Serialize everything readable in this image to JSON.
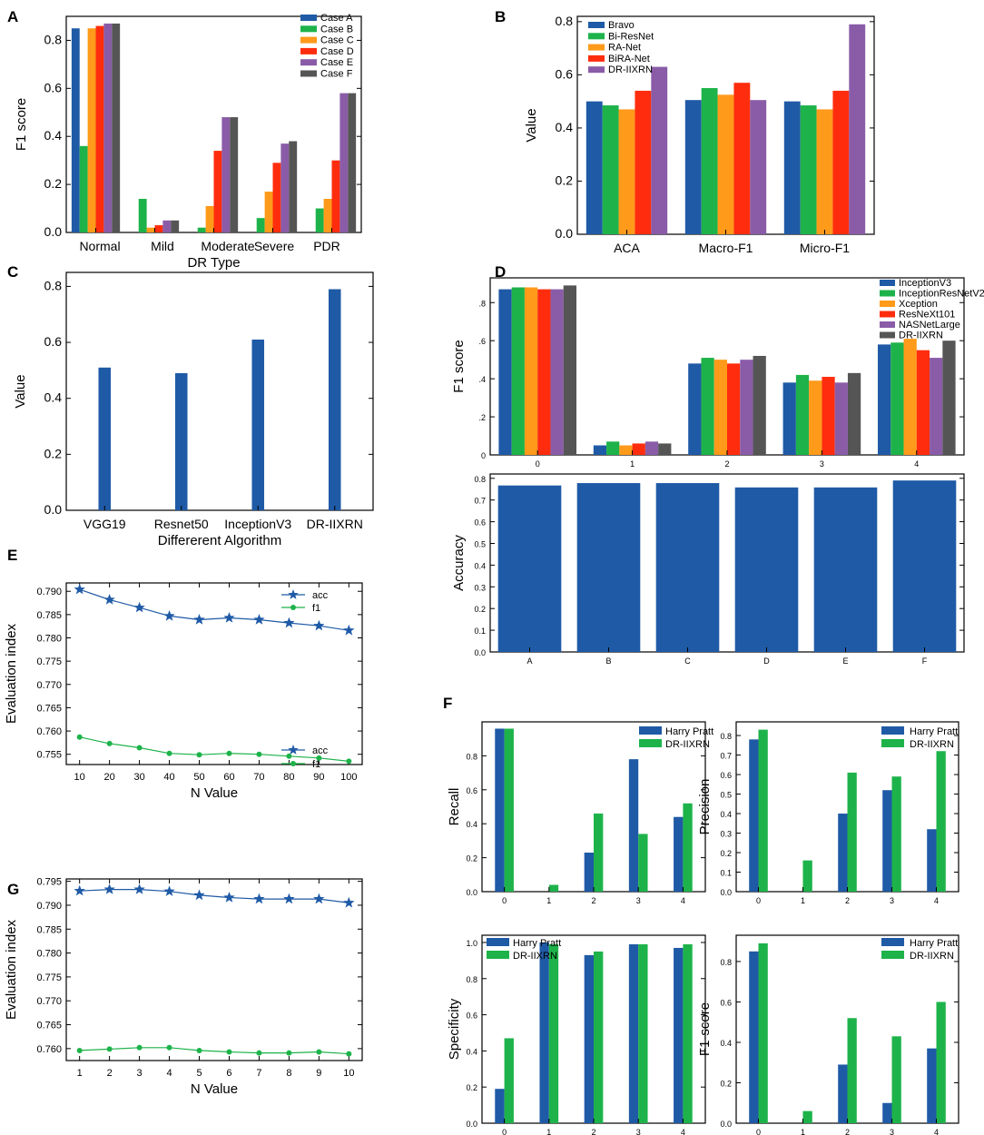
{
  "colors": {
    "blue": "#1f5aa6",
    "green": "#1db34a",
    "orange": "#ff9a1a",
    "red": "#ff2d0d",
    "purple": "#8a5ca8",
    "gray": "#555555",
    "line_blue": "#1f5aa6",
    "line_green": "#1db34a"
  },
  "chart_data": [
    {
      "id": "A",
      "letter": "A",
      "type": "bar",
      "categories": [
        "Normal",
        "Mild",
        "Moderate",
        "Severe",
        "PDR"
      ],
      "series": [
        {
          "name": "Case A",
          "color": "blue",
          "values": [
            0.85,
            0.0,
            0.0,
            0.0,
            0.0
          ]
        },
        {
          "name": "Case B",
          "color": "green",
          "values": [
            0.36,
            0.14,
            0.02,
            0.06,
            0.1
          ]
        },
        {
          "name": "Case C",
          "color": "orange",
          "values": [
            0.85,
            0.02,
            0.11,
            0.17,
            0.14
          ]
        },
        {
          "name": "Case D",
          "color": "red",
          "values": [
            0.86,
            0.03,
            0.34,
            0.29,
            0.3
          ]
        },
        {
          "name": "Case E",
          "color": "purple",
          "values": [
            0.87,
            0.05,
            0.48,
            0.37,
            0.58
          ]
        },
        {
          "name": "Case F",
          "color": "gray",
          "values": [
            0.87,
            0.05,
            0.48,
            0.38,
            0.58
          ]
        }
      ],
      "xlabel": "DR Type",
      "ylabel": "F1 score",
      "ylim": [
        0,
        0.9
      ],
      "yticks": [
        "0.0",
        "0.2",
        "0.4",
        "0.6",
        "0.8"
      ],
      "legend": "top-right"
    },
    {
      "id": "B",
      "letter": "B",
      "type": "bar",
      "categories": [
        "ACA",
        "Macro-F1",
        "Micro-F1"
      ],
      "series": [
        {
          "name": "Bravo",
          "color": "blue",
          "values": [
            0.5,
            0.505,
            0.5
          ]
        },
        {
          "name": "Bi-ResNet",
          "color": "green",
          "values": [
            0.485,
            0.55,
            0.485
          ]
        },
        {
          "name": "RA-Net",
          "color": "orange",
          "values": [
            0.47,
            0.525,
            0.47
          ]
        },
        {
          "name": "BiRA-Net",
          "color": "red",
          "values": [
            0.54,
            0.57,
            0.54
          ]
        },
        {
          "name": "DR-IIXRN",
          "color": "purple",
          "values": [
            0.63,
            0.505,
            0.79
          ]
        }
      ],
      "xlabel": "",
      "ylabel": "Value",
      "ylim": [
        0,
        0.82
      ],
      "yticks": [
        "0.0",
        "0.2",
        "0.4",
        "0.6",
        "0.8"
      ],
      "legend": "top-left"
    },
    {
      "id": "C",
      "letter": "C",
      "type": "bar",
      "categories": [
        "VGG19",
        "Resnet50",
        "InceptionV3",
        "DR-IIXRN"
      ],
      "series": [
        {
          "name": "Value",
          "color": "blue",
          "values": [
            0.51,
            0.49,
            0.61,
            0.79
          ]
        }
      ],
      "xlabel": "Differerent Algorithm",
      "ylabel": "Value",
      "ylim": [
        0,
        0.85
      ],
      "yticks": [
        "0.0",
        "0.2",
        "0.4",
        "0.6",
        "0.8"
      ]
    },
    {
      "id": "D1",
      "letter": "D",
      "type": "bar",
      "categories": [
        "0",
        "1",
        "2",
        "3",
        "4"
      ],
      "series": [
        {
          "name": "InceptionV3",
          "color": "blue",
          "values": [
            0.87,
            0.05,
            0.48,
            0.38,
            0.58
          ]
        },
        {
          "name": "InceptionResNetV2",
          "color": "green",
          "values": [
            0.88,
            0.07,
            0.51,
            0.42,
            0.59
          ]
        },
        {
          "name": "Xception",
          "color": "orange",
          "values": [
            0.88,
            0.05,
            0.5,
            0.39,
            0.61
          ]
        },
        {
          "name": "ResNeXt101",
          "color": "red",
          "values": [
            0.87,
            0.06,
            0.48,
            0.41,
            0.55
          ]
        },
        {
          "name": "NASNetLarge",
          "color": "purple",
          "values": [
            0.87,
            0.07,
            0.5,
            0.38,
            0.51
          ]
        },
        {
          "name": "DR-IIXRN",
          "color": "gray",
          "values": [
            0.89,
            0.06,
            0.52,
            0.43,
            0.6
          ]
        }
      ],
      "xlabel": "",
      "ylabel": "F1 score",
      "ylim": [
        0,
        0.93
      ],
      "yticks": [
        "0",
        ".2",
        ".4",
        ".6",
        ".8"
      ],
      "legend": "top-right"
    },
    {
      "id": "D2",
      "letter": "",
      "type": "bar",
      "categories": [
        "A",
        "B",
        "C",
        "D",
        "E",
        "F"
      ],
      "series": [
        {
          "name": "Accuracy",
          "color": "blue",
          "values": [
            0.767,
            0.778,
            0.778,
            0.758,
            0.758,
            0.79
          ]
        }
      ],
      "xlabel": "",
      "ylabel": "Accuracy",
      "ylim": [
        0,
        0.82
      ],
      "yticks": [
        "0.0",
        "0.1",
        "0.2",
        "0.3",
        "0.4",
        "0.5",
        "0.6",
        "0.7",
        "0.8"
      ]
    },
    {
      "id": "E",
      "letter": "E",
      "type": "line",
      "x": [
        10,
        20,
        30,
        40,
        50,
        60,
        70,
        80,
        90,
        100
      ],
      "series": [
        {
          "name": "acc",
          "color": "line_blue",
          "marker": "star",
          "values": [
            0.7904,
            0.7882,
            0.7865,
            0.7847,
            0.7839,
            0.7843,
            0.7839,
            0.7832,
            0.7826,
            0.7816
          ]
        },
        {
          "name": "f1",
          "color": "line_green",
          "marker": "circle",
          "values": [
            0.7587,
            0.7573,
            0.7564,
            0.7552,
            0.7549,
            0.7552,
            0.755,
            0.7546,
            0.7542,
            0.7535
          ]
        }
      ],
      "xlabel": "N Value",
      "ylabel": "Evaluation index",
      "ylim": [
        0.7528,
        0.7918
      ],
      "yticks": [
        "0.755",
        "0.760",
        "0.765",
        "0.770",
        "0.775",
        "0.780",
        "0.785",
        "0.790"
      ],
      "xticks": [
        "10",
        "20",
        "30",
        "40",
        "50",
        "60",
        "70",
        "80",
        "90",
        "100"
      ],
      "legend": "top-right"
    },
    {
      "id": "G",
      "letter": "G",
      "type": "line",
      "x": [
        1,
        2,
        3,
        4,
        5,
        6,
        7,
        8,
        9,
        10
      ],
      "series": [
        {
          "name": "acc",
          "color": "line_blue",
          "marker": "star",
          "values": [
            0.793,
            0.7933,
            0.7933,
            0.7929,
            0.7921,
            0.7916,
            0.7913,
            0.7913,
            0.7913,
            0.7905
          ]
        },
        {
          "name": "f1",
          "color": "line_green",
          "marker": "circle",
          "values": [
            0.7596,
            0.7599,
            0.7602,
            0.7602,
            0.7596,
            0.7593,
            0.7591,
            0.7591,
            0.7593,
            0.7589
          ]
        }
      ],
      "xlabel": "N Value",
      "ylabel": "Evaluation index",
      "ylim": [
        0.7575,
        0.7955
      ],
      "yticks": [
        "0.760",
        "0.765",
        "0.770",
        "0.775",
        "0.780",
        "0.785",
        "0.790",
        "0.795"
      ],
      "xticks": [
        "1",
        "2",
        "3",
        "4",
        "5",
        "6",
        "7",
        "8",
        "9",
        "10"
      ],
      "legend": "center-right"
    },
    {
      "id": "F1",
      "letter": "F",
      "type": "bar",
      "categories": [
        "0",
        "1",
        "2",
        "3",
        "4"
      ],
      "series": [
        {
          "name": "Harry Pratt",
          "color": "blue",
          "values": [
            0.96,
            0.0,
            0.23,
            0.78,
            0.44
          ]
        },
        {
          "name": "DR-IIXRN",
          "color": "green",
          "values": [
            0.96,
            0.04,
            0.46,
            0.34,
            0.52
          ]
        }
      ],
      "xlabel": "",
      "ylabel": "Recall",
      "ylim": [
        0,
        1.0
      ],
      "yticks": [
        "0.0",
        "0.2",
        "0.4",
        "0.6",
        "0.8"
      ],
      "legend": "top-right"
    },
    {
      "id": "F2",
      "letter": "",
      "type": "bar",
      "categories": [
        "0",
        "1",
        "2",
        "3",
        "4"
      ],
      "series": [
        {
          "name": "Harry Pratt",
          "color": "blue",
          "values": [
            0.78,
            0.0,
            0.4,
            0.52,
            0.32
          ]
        },
        {
          "name": "DR-IIXRN",
          "color": "green",
          "values": [
            0.83,
            0.16,
            0.61,
            0.59,
            0.72
          ]
        }
      ],
      "xlabel": "",
      "ylabel": "Precision",
      "ylim": [
        0,
        0.87
      ],
      "yticks": [
        "0.0",
        "0.1",
        "0.2",
        "0.3",
        "0.4",
        "0.5",
        "0.6",
        "0.7",
        "0.8"
      ],
      "legend": "top-right"
    },
    {
      "id": "F3",
      "letter": "",
      "type": "bar",
      "categories": [
        "0",
        "1",
        "2",
        "3",
        "4"
      ],
      "series": [
        {
          "name": "Harry Pratt",
          "color": "blue",
          "values": [
            0.19,
            1.0,
            0.93,
            0.99,
            0.97
          ]
        },
        {
          "name": "DR-IIXRN",
          "color": "green",
          "values": [
            0.47,
            0.99,
            0.95,
            0.99,
            0.99
          ]
        }
      ],
      "xlabel": "",
      "ylabel": "Specificity",
      "ylim": [
        0,
        1.04
      ],
      "yticks": [
        "0.0",
        "0.2",
        "0.4",
        "0.6",
        "0.8",
        "1.0"
      ],
      "legend": "top-left"
    },
    {
      "id": "F4",
      "letter": "",
      "type": "bar",
      "categories": [
        "0",
        "1",
        "2",
        "3",
        "4"
      ],
      "series": [
        {
          "name": "Harry Pratt",
          "color": "blue",
          "values": [
            0.85,
            0.0,
            0.29,
            0.1,
            0.37
          ]
        },
        {
          "name": "DR-IIXRN",
          "color": "green",
          "values": [
            0.89,
            0.06,
            0.52,
            0.43,
            0.6
          ]
        }
      ],
      "xlabel": "",
      "ylabel": "F1-score",
      "ylim": [
        0,
        0.93
      ],
      "yticks": [
        "0.0",
        "0.2",
        "0.4",
        "0.6",
        "0.8"
      ],
      "legend": "top-right"
    }
  ]
}
